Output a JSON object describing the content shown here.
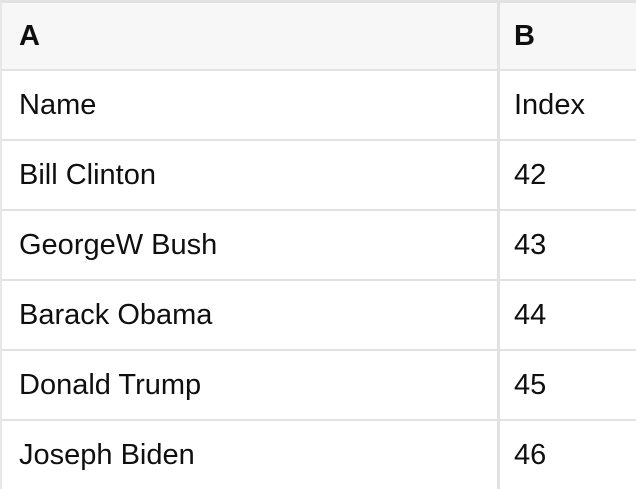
{
  "table": {
    "columns": [
      {
        "id": "A",
        "label": "A"
      },
      {
        "id": "B",
        "label": "B"
      }
    ],
    "rows": [
      {
        "a": "Name",
        "b": "Index"
      },
      {
        "a": "Bill Clinton",
        "b": "42"
      },
      {
        "a": "GeorgeW Bush",
        "b": "43"
      },
      {
        "a": "Barack Obama",
        "b": "44"
      },
      {
        "a": "Donald Trump",
        "b": "45"
      },
      {
        "a": "Joseph Biden",
        "b": "46"
      }
    ],
    "colors": {
      "header_bg": "#f7f7f7",
      "border": "#e2e2e2",
      "text": "#0f0f0f",
      "cell_bg": "#ffffff"
    }
  }
}
